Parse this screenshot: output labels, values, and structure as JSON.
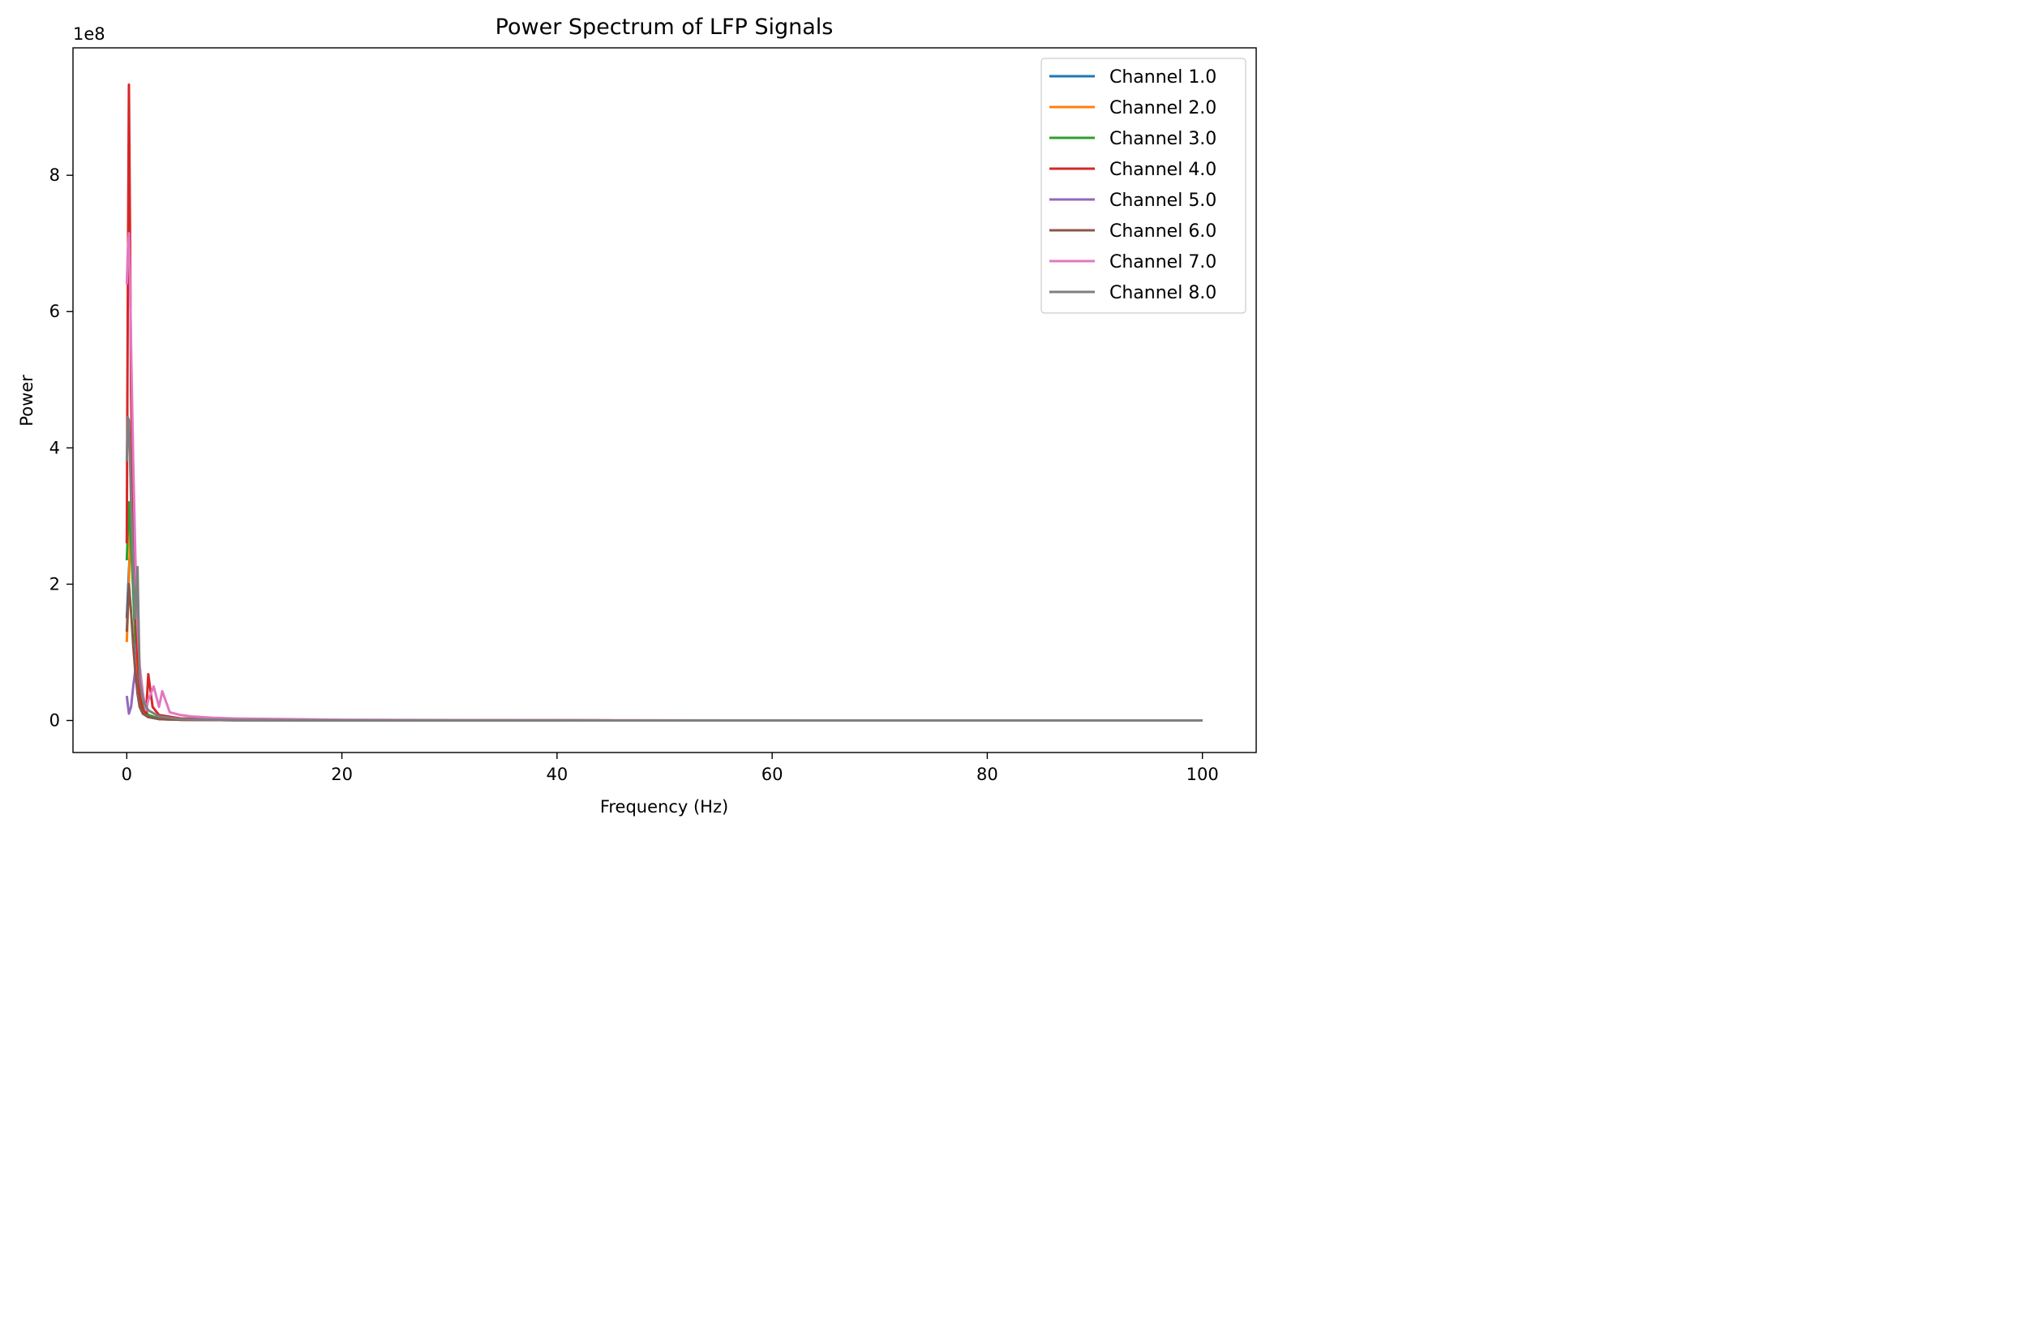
{
  "chart_data": {
    "type": "line",
    "title": "Power Spectrum of LFP Signals",
    "xlabel": "Frequency (Hz)",
    "ylabel": "Power",
    "y_offset_label": "1e8",
    "y_scale_factor": 100000000,
    "xlim": [
      -5,
      105
    ],
    "ylim": [
      -0.47,
      9.87
    ],
    "x_ticks": [
      0,
      20,
      40,
      60,
      80,
      100
    ],
    "x_tick_labels": [
      "0",
      "20",
      "40",
      "60",
      "80",
      "100"
    ],
    "y_ticks": [
      0,
      2,
      4,
      6,
      8
    ],
    "y_tick_labels": [
      "0",
      "2",
      "4",
      "6",
      "8"
    ],
    "grid": false,
    "legend_position": "top-right",
    "series": [
      {
        "name": "Channel 1.0",
        "color": "#1f77b4",
        "x": [
          0,
          0.2,
          0.4,
          0.6,
          0.8,
          1.0,
          1.2,
          1.5,
          2.0,
          3,
          5,
          10,
          20,
          40,
          60,
          80,
          100
        ],
        "y": [
          1.5,
          2.2,
          2.8,
          1.9,
          1.2,
          0.7,
          0.4,
          0.2,
          0.08,
          0.03,
          0.01,
          0.005,
          0.002,
          0.001,
          0.0,
          0.0,
          0.0
        ]
      },
      {
        "name": "Channel 2.0",
        "color": "#ff7f0e",
        "x": [
          0,
          0.2,
          0.4,
          0.6,
          0.8,
          1.0,
          1.2,
          1.5,
          2.0,
          3,
          5,
          10,
          20,
          40,
          60,
          80,
          100
        ],
        "y": [
          1.15,
          2.0,
          3.25,
          2.6,
          1.6,
          0.7,
          0.35,
          0.12,
          0.06,
          0.02,
          0.01,
          0.004,
          0.002,
          0.001,
          0.0,
          0.0,
          0.0
        ]
      },
      {
        "name": "Channel 3.0",
        "color": "#2ca02c",
        "x": [
          0,
          0.2,
          0.4,
          0.6,
          0.8,
          1.0,
          1.2,
          1.5,
          2.0,
          3,
          5,
          10,
          20,
          40,
          60,
          80,
          100
        ],
        "y": [
          2.35,
          3.2,
          2.6,
          1.9,
          1.15,
          1.5,
          0.6,
          0.2,
          0.08,
          0.03,
          0.01,
          0.004,
          0.002,
          0.001,
          0.0,
          0.0,
          0.0
        ]
      },
      {
        "name": "Channel 4.0",
        "color": "#d62728",
        "x": [
          0,
          0.1,
          0.2,
          0.3,
          0.4,
          0.6,
          0.8,
          1.0,
          1.2,
          1.5,
          1.8,
          2.0,
          2.4,
          3,
          5,
          10,
          20,
          40,
          60,
          80,
          100
        ],
        "y": [
          2.6,
          6.4,
          9.33,
          7.2,
          4.8,
          3.0,
          1.7,
          0.9,
          0.35,
          0.15,
          0.1,
          0.68,
          0.2,
          0.08,
          0.03,
          0.01,
          0.004,
          0.001,
          0.0,
          0.0,
          0.0
        ]
      },
      {
        "name": "Channel 5.0",
        "color": "#9467bd",
        "x": [
          0,
          0.2,
          0.4,
          0.6,
          0.8,
          1.0,
          1.2,
          1.5,
          2.0,
          3,
          5,
          10,
          20,
          40,
          60,
          80,
          100
        ],
        "y": [
          0.36,
          0.1,
          0.2,
          0.5,
          0.75,
          0.4,
          0.2,
          0.1,
          0.05,
          0.02,
          0.01,
          0.004,
          0.002,
          0.001,
          0.0,
          0.0,
          0.0
        ]
      },
      {
        "name": "Channel 6.0",
        "color": "#8c564b",
        "x": [
          0,
          0.2,
          0.4,
          0.6,
          0.8,
          1.0,
          1.2,
          1.5,
          2.0,
          3,
          5,
          10,
          20,
          40,
          60,
          80,
          100
        ],
        "y": [
          1.3,
          2.0,
          1.6,
          1.1,
          0.7,
          0.4,
          0.2,
          0.1,
          0.05,
          0.02,
          0.01,
          0.004,
          0.002,
          0.001,
          0.0,
          0.0,
          0.0
        ]
      },
      {
        "name": "Channel 7.0",
        "color": "#e377c2",
        "x": [
          0,
          0.1,
          0.2,
          0.3,
          0.4,
          0.6,
          0.8,
          1.0,
          1.2,
          1.5,
          1.8,
          2.0,
          2.5,
          3.0,
          3.3,
          4.0,
          5,
          6,
          8,
          10,
          20,
          40,
          60,
          80,
          100
        ],
        "y": [
          6.4,
          6.9,
          7.15,
          6.5,
          5.5,
          3.8,
          2.4,
          1.4,
          0.8,
          0.4,
          0.15,
          0.3,
          0.5,
          0.2,
          0.43,
          0.12,
          0.08,
          0.06,
          0.04,
          0.03,
          0.01,
          0.004,
          0.001,
          0.0,
          0.0
        ]
      },
      {
        "name": "Channel 8.0",
        "color": "#7f7f7f",
        "x": [
          0,
          0.1,
          0.2,
          0.3,
          0.4,
          0.6,
          0.8,
          1.0,
          1.2,
          1.5,
          2.0,
          3,
          5,
          10,
          20,
          40,
          60,
          80,
          100
        ],
        "y": [
          3.8,
          4.45,
          4.4,
          3.9,
          3.2,
          2.2,
          1.5,
          2.25,
          0.6,
          0.3,
          0.15,
          0.06,
          0.02,
          0.008,
          0.003,
          0.001,
          0.0,
          0.0,
          0.0
        ]
      }
    ]
  }
}
